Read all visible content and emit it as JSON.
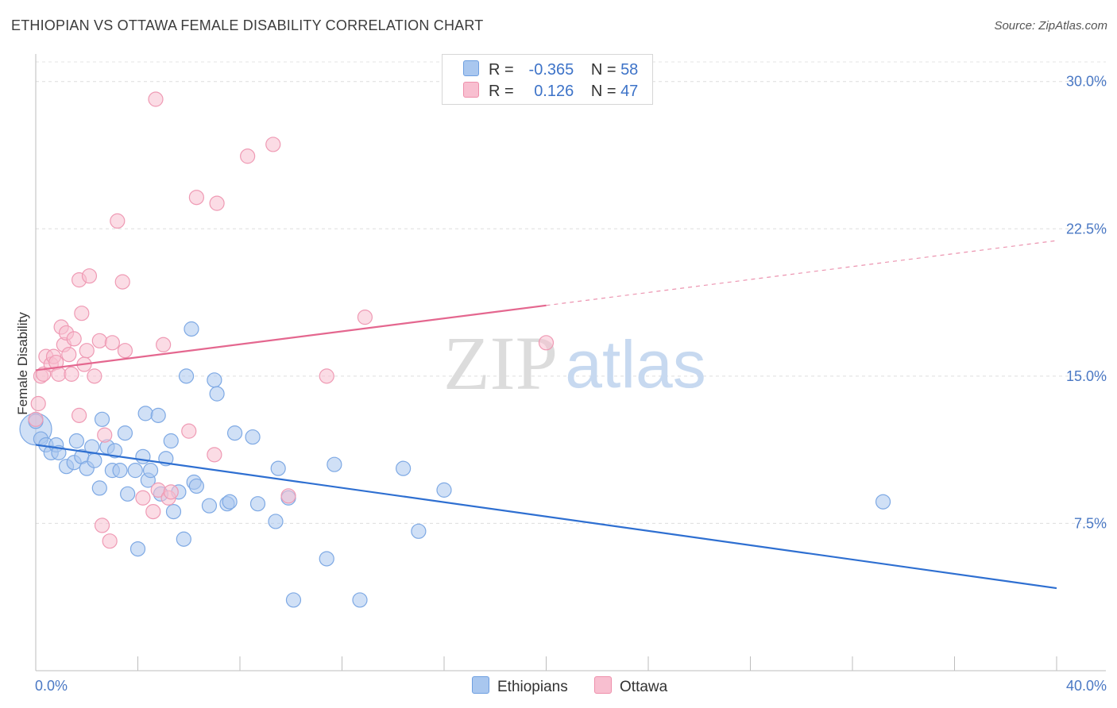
{
  "title": "ETHIOPIAN VS OTTAWA FEMALE DISABILITY CORRELATION CHART",
  "source": "Source: ZipAtlas.com",
  "watermark": {
    "zip": "ZIP",
    "atlas": "atlas"
  },
  "legend_top": [
    {
      "r_label": "R =",
      "r_value": "-0.365",
      "n_label": "N =",
      "n_value": "58",
      "color": "#a9c7ef",
      "stroke": "#6e9fe0"
    },
    {
      "r_label": "R =",
      "r_value": "0.126",
      "n_label": "N =",
      "n_value": "47",
      "color": "#f8bfd0",
      "stroke": "#ee8fab"
    }
  ],
  "legend_bottom": [
    {
      "label": "Ethiopians",
      "color": "#a9c7ef"
    },
    {
      "label": "Ottawa",
      "color": "#f8bfd0"
    }
  ],
  "colors": {
    "blue_line": "#2e6fd1",
    "pink_line": "#e4678f",
    "blue_point": "#a9c7ef",
    "pink_point": "#f8bfd0",
    "tick": "#4a78c4"
  },
  "chart_data": {
    "type": "scatter",
    "title": "ETHIOPIAN VS OTTAWA FEMALE DISABILITY CORRELATION CHART",
    "ylabel": "Female Disability",
    "xlabel": "",
    "xlim": [
      0,
      40
    ],
    "ylim": [
      0,
      31
    ],
    "x_tick_labels": [
      "0.0%",
      "40.0%"
    ],
    "y_ticks": [
      7.5,
      15.0,
      22.5,
      30.0
    ],
    "y_tick_labels": [
      "7.5%",
      "15.0%",
      "22.5%",
      "30.0%"
    ],
    "grid": true,
    "series": [
      {
        "name": "Ethiopians",
        "points": [
          [
            0.0,
            12.3
          ],
          [
            0.2,
            11.8
          ],
          [
            0.4,
            11.5
          ],
          [
            0.6,
            11.1
          ],
          [
            0.8,
            11.5
          ],
          [
            0.9,
            11.1
          ],
          [
            1.2,
            10.4
          ],
          [
            1.5,
            10.6
          ],
          [
            1.6,
            11.7
          ],
          [
            1.8,
            10.9
          ],
          [
            2.0,
            10.3
          ],
          [
            2.2,
            11.4
          ],
          [
            2.3,
            10.7
          ],
          [
            2.5,
            9.3
          ],
          [
            2.6,
            12.8
          ],
          [
            2.8,
            11.4
          ],
          [
            3.0,
            10.2
          ],
          [
            3.1,
            11.2
          ],
          [
            3.3,
            10.2
          ],
          [
            3.5,
            12.1
          ],
          [
            3.6,
            9.0
          ],
          [
            3.9,
            10.2
          ],
          [
            4.0,
            6.2
          ],
          [
            4.2,
            10.9
          ],
          [
            4.3,
            13.1
          ],
          [
            4.4,
            9.7
          ],
          [
            4.5,
            10.2
          ],
          [
            4.8,
            13.0
          ],
          [
            4.9,
            9.0
          ],
          [
            5.1,
            10.8
          ],
          [
            5.3,
            11.7
          ],
          [
            5.4,
            8.1
          ],
          [
            5.6,
            9.1
          ],
          [
            5.8,
            6.7
          ],
          [
            5.9,
            15.0
          ],
          [
            6.1,
            17.4
          ],
          [
            6.2,
            9.6
          ],
          [
            6.3,
            9.4
          ],
          [
            6.8,
            8.4
          ],
          [
            7.0,
            14.8
          ],
          [
            7.1,
            14.1
          ],
          [
            7.5,
            8.5
          ],
          [
            7.6,
            8.6
          ],
          [
            7.8,
            12.1
          ],
          [
            8.5,
            11.9
          ],
          [
            8.7,
            8.5
          ],
          [
            9.4,
            7.6
          ],
          [
            9.5,
            10.3
          ],
          [
            9.9,
            8.8
          ],
          [
            10.1,
            3.6
          ],
          [
            11.4,
            5.7
          ],
          [
            11.7,
            10.5
          ],
          [
            12.7,
            3.6
          ],
          [
            14.4,
            10.3
          ],
          [
            15.0,
            7.1
          ],
          [
            16.0,
            9.2
          ],
          [
            33.2,
            8.6
          ],
          [
            0.0,
            12.7
          ]
        ]
      },
      {
        "name": "Ottawa",
        "points": [
          [
            0.0,
            12.8
          ],
          [
            0.1,
            13.6
          ],
          [
            0.2,
            15.0
          ],
          [
            0.3,
            15.1
          ],
          [
            0.4,
            16.0
          ],
          [
            0.6,
            15.6
          ],
          [
            0.7,
            16.0
          ],
          [
            0.8,
            15.7
          ],
          [
            0.9,
            15.1
          ],
          [
            1.0,
            17.5
          ],
          [
            1.1,
            16.6
          ],
          [
            1.2,
            17.2
          ],
          [
            1.3,
            16.1
          ],
          [
            1.4,
            15.1
          ],
          [
            1.5,
            16.9
          ],
          [
            1.7,
            13.0
          ],
          [
            1.7,
            19.9
          ],
          [
            1.8,
            18.2
          ],
          [
            1.9,
            15.6
          ],
          [
            2.0,
            16.3
          ],
          [
            2.1,
            20.1
          ],
          [
            2.3,
            15.0
          ],
          [
            2.5,
            16.8
          ],
          [
            2.6,
            7.4
          ],
          [
            2.7,
            12.0
          ],
          [
            2.9,
            6.6
          ],
          [
            3.0,
            16.7
          ],
          [
            3.2,
            22.9
          ],
          [
            3.4,
            19.8
          ],
          [
            3.5,
            16.3
          ],
          [
            4.2,
            8.8
          ],
          [
            4.6,
            8.1
          ],
          [
            4.7,
            29.1
          ],
          [
            4.8,
            9.2
          ],
          [
            5.0,
            16.6
          ],
          [
            5.2,
            8.8
          ],
          [
            5.3,
            9.1
          ],
          [
            6.0,
            12.2
          ],
          [
            6.3,
            24.1
          ],
          [
            7.0,
            11.0
          ],
          [
            7.1,
            23.8
          ],
          [
            8.3,
            26.2
          ],
          [
            9.3,
            26.8
          ],
          [
            9.9,
            8.9
          ],
          [
            11.4,
            15.0
          ],
          [
            12.9,
            18.0
          ],
          [
            20.0,
            16.7
          ]
        ]
      }
    ],
    "trend_lines": [
      {
        "series": "Ethiopians",
        "x": [
          0,
          40
        ],
        "y": [
          11.5,
          4.2
        ],
        "style": "solid"
      },
      {
        "series": "Ottawa",
        "x": [
          0,
          20
        ],
        "y": [
          15.3,
          18.6
        ],
        "style": "solid"
      },
      {
        "series": "Ottawa",
        "x": [
          20,
          40
        ],
        "y": [
          18.6,
          21.9
        ],
        "style": "dashed"
      }
    ]
  }
}
